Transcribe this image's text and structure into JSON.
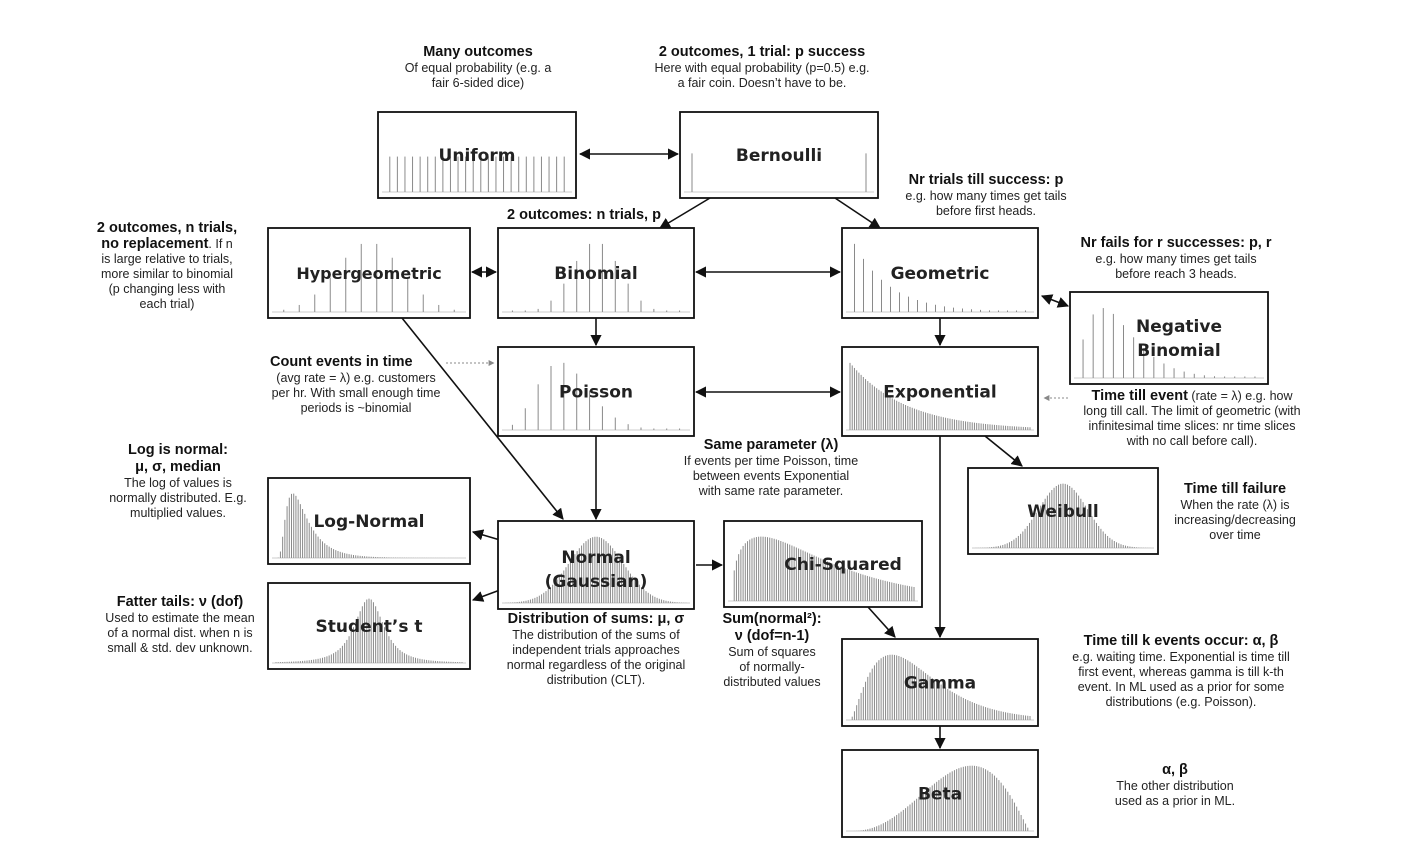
{
  "boxes": {
    "uniform": "Uniform",
    "bernoulli": "Bernoulli",
    "hypergeometric": "Hypergeometric",
    "binomial": "Binomial",
    "geometric": "Geometric",
    "negative_binomial_1": "Negative",
    "negative_binomial_2": "Binomial",
    "poisson": "Poisson",
    "exponential": "Exponential",
    "weibull": "Weibull",
    "log_normal": "Log-Normal",
    "normal_1": "Normal",
    "normal_2": "(Gaussian)",
    "chi_squared": "Chi-Squared",
    "students_t": "Student’s t",
    "gamma": "Gamma",
    "beta": "Beta"
  },
  "annotations": {
    "many_outcomes": {
      "title": "Many outcomes",
      "desc": [
        "Of equal probability (e.g. a",
        "fair 6-sided dice)"
      ]
    },
    "two_outcomes_one_trial": {
      "title": "2 outcomes, 1 trial: p success",
      "desc": [
        "Here with equal probability (p=0.5) e.g.",
        "a fair coin. Doesn’t have to be."
      ]
    },
    "nr_trials_till_success": {
      "title": "Nr trials till success: p",
      "desc": [
        "e.g. how many times get tails",
        "before first heads."
      ]
    },
    "two_outcomes_n_trials": {
      "title": "2 outcomes: n trials, p"
    },
    "no_replacement": {
      "title_1": "2 outcomes, n trials,",
      "title_2": "no replacement",
      "desc_inline": ". If n",
      "desc": [
        "is large relative to trials,",
        "more similar to binomial",
        "(p changing less with",
        "each trial)"
      ]
    },
    "nr_fails": {
      "title": "Nr fails for r successes: p, r",
      "desc": [
        "e.g. how many times get tails",
        "before reach 3 heads."
      ]
    },
    "count_events": {
      "title": "Count events in time",
      "desc": [
        "(avg rate = λ) e.g. customers",
        "per hr. With small enough time",
        "periods is ~binomial"
      ]
    },
    "time_till_event": {
      "title": "Time till event",
      "desc_inline": " (rate = λ) e.g. how",
      "desc": [
        "long till call. The limit of geometric (with",
        "infinitesimal time slices: nr time slices",
        "with no call before call)."
      ]
    },
    "same_parameter": {
      "title": "Same parameter (λ)",
      "desc": [
        "If events per time Poisson, time",
        "between events Exponential",
        "with same rate parameter."
      ]
    },
    "log_is_normal": {
      "title_1": "Log is normal:",
      "title_2": "μ, σ, median",
      "desc": [
        "The log of values is",
        "normally distributed. E.g.",
        "multiplied values."
      ]
    },
    "time_till_failure": {
      "title": "Time till failure",
      "desc": [
        "When the rate (λ) is",
        "increasing/decreasing",
        "over time"
      ]
    },
    "fatter_tails": {
      "title": "Fatter tails: ν (dof)",
      "desc": [
        "Used to estimate the mean",
        "of a normal dist. when n is",
        "small & std. dev unknown."
      ]
    },
    "distribution_of_sums": {
      "title": "Distribution of sums: μ, σ",
      "desc": [
        "The distribution of the sums of",
        "independent trials approaches",
        "normal regardless of the original",
        "distribution (CLT)."
      ]
    },
    "sum_normal_sq": {
      "title_1": "Sum(normal²):",
      "title_2": "ν (dof=n-1)",
      "desc": [
        "Sum of squares",
        "of normally-",
        "distributed values"
      ]
    },
    "time_till_k_events": {
      "title": "Time till k events occur: α, β",
      "desc": [
        "e.g. waiting time. Exponential is time till",
        "first event, whereas gamma is till k-th",
        "event. In ML used as a prior for some",
        "distributions (e.g. Poisson)."
      ]
    },
    "alpha_beta": {
      "title": "α, β",
      "desc": [
        "The other distribution",
        "used as a prior in ML."
      ]
    }
  }
}
